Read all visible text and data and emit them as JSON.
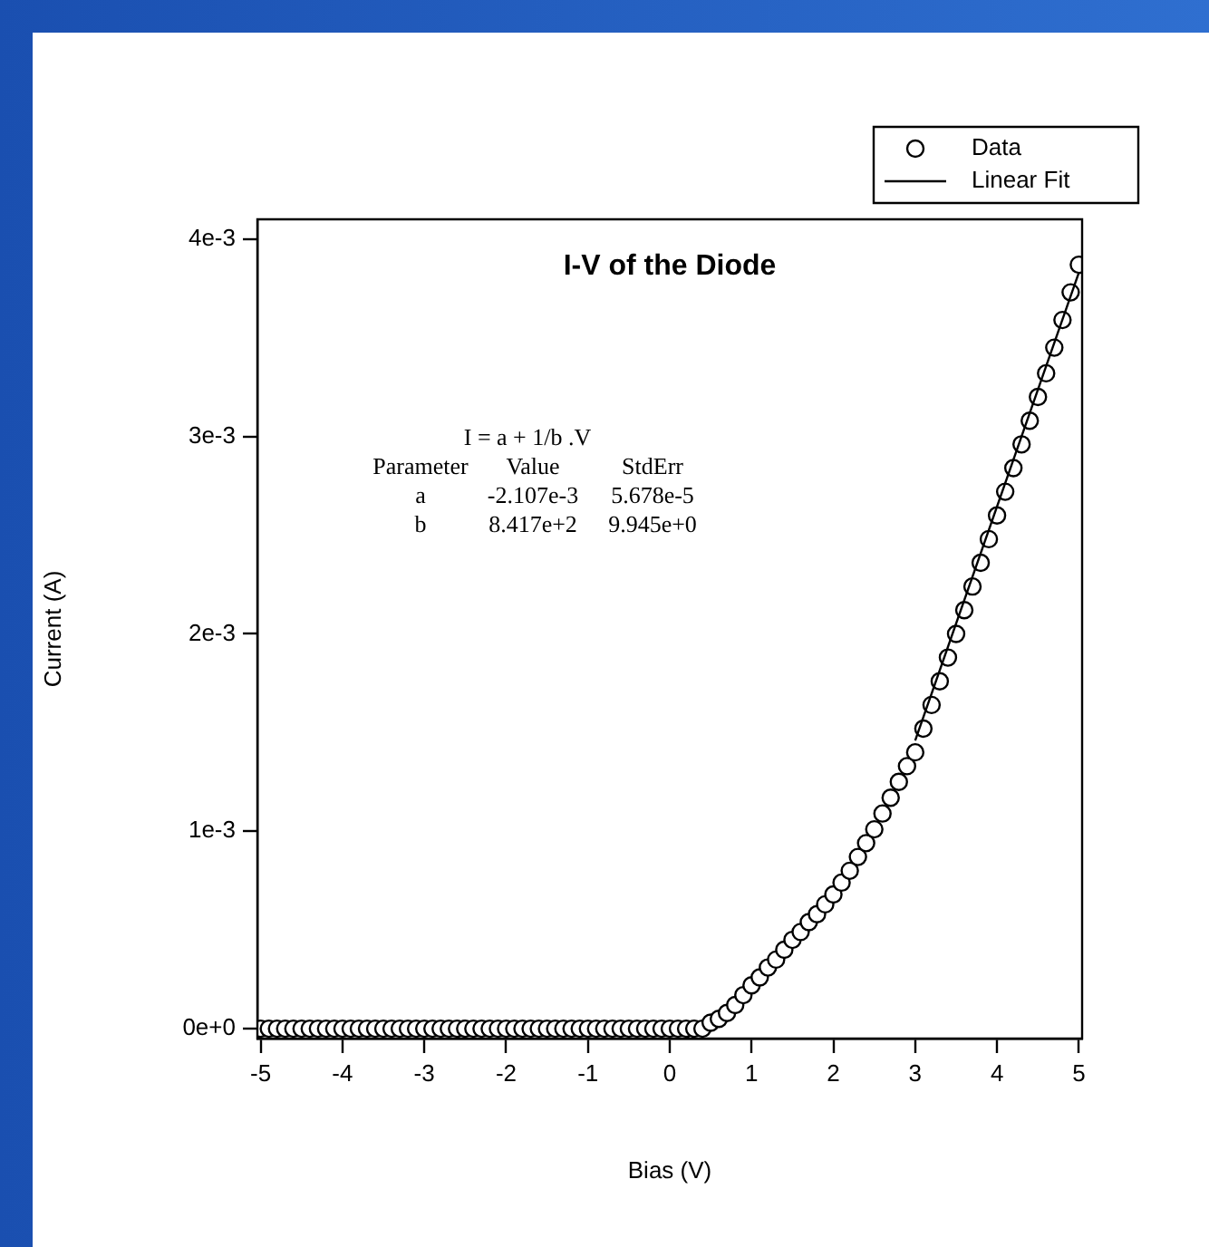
{
  "chart_data": {
    "type": "scatter",
    "title": "I-V of the Diode",
    "xlabel": "Bias (V)",
    "ylabel": "Current (A)",
    "xlim": [
      -5.04,
      5.04
    ],
    "xticks": [
      -5,
      -4,
      -3,
      -2,
      -1,
      0,
      1,
      2,
      3,
      4,
      5
    ],
    "ylim": [
      -5e-05,
      0.0041
    ],
    "yticks": [
      {
        "value": 0,
        "label": "0e+0"
      },
      {
        "value": 0.001,
        "label": "1e-3"
      },
      {
        "value": 0.002,
        "label": "2e-3"
      },
      {
        "value": 0.003,
        "label": "3e-3"
      },
      {
        "value": 0.004,
        "label": "4e-3"
      }
    ],
    "grid": false,
    "legend": "top right",
    "line_style": "solid",
    "marker": "circle",
    "annotations": [
      "I = a + 1/b .V",
      "Parameter Value StdErr",
      "a -2.107e-3 5.678e-5",
      "b 8.417e+2 9.945e+0"
    ],
    "series": [
      {
        "name": "Data",
        "color": "#000000",
        "x": [
          -5,
          -4.9,
          -4.8,
          -4.7,
          -4.6,
          -4.5,
          -4.4,
          -4.3,
          -4.2,
          -4.1,
          -4,
          -3.9,
          -3.8,
          -3.7,
          -3.6,
          -3.5,
          -3.4,
          -3.3,
          -3.2,
          -3.1,
          -3,
          -2.9,
          -2.8,
          -2.7,
          -2.6,
          -2.5,
          -2.4,
          -2.3,
          -2.2,
          -2.1,
          -2,
          -1.9,
          -1.8,
          -1.7,
          -1.6,
          -1.5,
          -1.4,
          -1.3,
          -1.2,
          -1.1,
          -1,
          -0.9,
          -0.8,
          -0.7,
          -0.6,
          -0.5,
          -0.4,
          -0.3,
          -0.2,
          -0.1,
          0,
          0.1,
          0.2,
          0.3,
          0.4,
          0.5,
          0.6,
          0.7,
          0.8,
          0.9,
          1,
          1.1,
          1.2,
          1.3,
          1.4,
          1.5,
          1.6,
          1.7,
          1.8,
          1.9,
          2,
          2.1,
          2.2,
          2.3,
          2.4,
          2.5,
          2.6,
          2.7,
          2.8,
          2.9,
          3,
          3.1,
          3.2,
          3.3,
          3.4,
          3.5,
          3.6,
          3.7,
          3.8,
          3.9,
          4,
          4.1,
          4.2,
          4.3,
          4.4,
          4.5,
          4.6,
          4.7,
          4.8,
          4.9,
          5
        ],
        "values": [
          0,
          0,
          0,
          0,
          0,
          0,
          0,
          0,
          0,
          0,
          0,
          0,
          0,
          0,
          0,
          0,
          0,
          0,
          0,
          0,
          0,
          0,
          0,
          0,
          0,
          0,
          0,
          0,
          0,
          0,
          0,
          0,
          0,
          0,
          0,
          0,
          0,
          0,
          0,
          0,
          0,
          0,
          0,
          0,
          0,
          0,
          0,
          0,
          0,
          0,
          0,
          0,
          0,
          0,
          0,
          3e-05,
          5e-05,
          8e-05,
          0.00012,
          0.00017,
          0.00022,
          0.00026,
          0.00031,
          0.00035,
          0.0004,
          0.00045,
          0.00049,
          0.00054,
          0.00058,
          0.00063,
          0.00068,
          0.00074,
          0.0008,
          0.00087,
          0.00094,
          0.00101,
          0.00109,
          0.00117,
          0.00125,
          0.00133,
          0.0014,
          0.00152,
          0.00164,
          0.00176,
          0.00188,
          0.002,
          0.00212,
          0.00224,
          0.00236,
          0.00248,
          0.0026,
          0.00272,
          0.00284,
          0.00296,
          0.00308,
          0.0032,
          0.00332,
          0.00345,
          0.00359,
          0.00373,
          0.00387
        ]
      },
      {
        "name": "Linear Fit",
        "type": "line",
        "marker": "none",
        "color": "#000000",
        "x": [
          3,
          5
        ],
        "values": [
          0.00146,
          0.00383
        ]
      }
    ]
  }
}
